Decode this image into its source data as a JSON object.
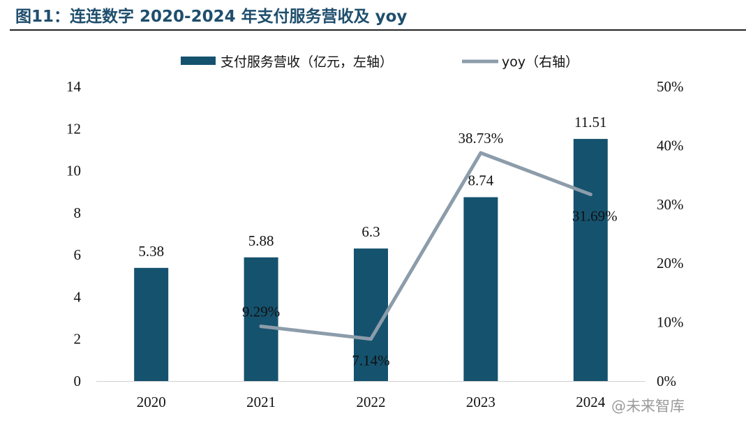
{
  "title": "图11：连连数字 2020-2024 年支付服务营收及 yoy",
  "watermark": "@未来智库",
  "colors": {
    "bar": "#15526e",
    "line": "#8c9caa",
    "title": "#1f4e6d"
  },
  "chart_data": {
    "type": "bar",
    "categories": [
      "2020",
      "2021",
      "2022",
      "2023",
      "2024"
    ],
    "series": [
      {
        "name": "支付服务营收（亿元，左轴）",
        "type": "bar",
        "axis": "left",
        "values": [
          5.38,
          5.88,
          6.3,
          8.74,
          11.51
        ],
        "labels": [
          "5.38",
          "5.88",
          "6.3",
          "8.74",
          "11.51"
        ]
      },
      {
        "name": "yoy（右轴）",
        "type": "line",
        "axis": "right",
        "values": [
          null,
          9.29,
          7.14,
          38.73,
          31.69
        ],
        "labels": [
          "",
          "9.29%",
          "7.14%",
          "38.73%",
          "31.69%"
        ]
      }
    ],
    "y_left": {
      "range": [
        0,
        14
      ],
      "ticks": [
        "0",
        "2",
        "4",
        "6",
        "8",
        "10",
        "12",
        "14"
      ]
    },
    "y_right": {
      "range": [
        0,
        50
      ],
      "ticks": [
        "0%",
        "10%",
        "20%",
        "30%",
        "40%",
        "50%"
      ]
    },
    "legend_position": "top-center",
    "grid": false
  }
}
